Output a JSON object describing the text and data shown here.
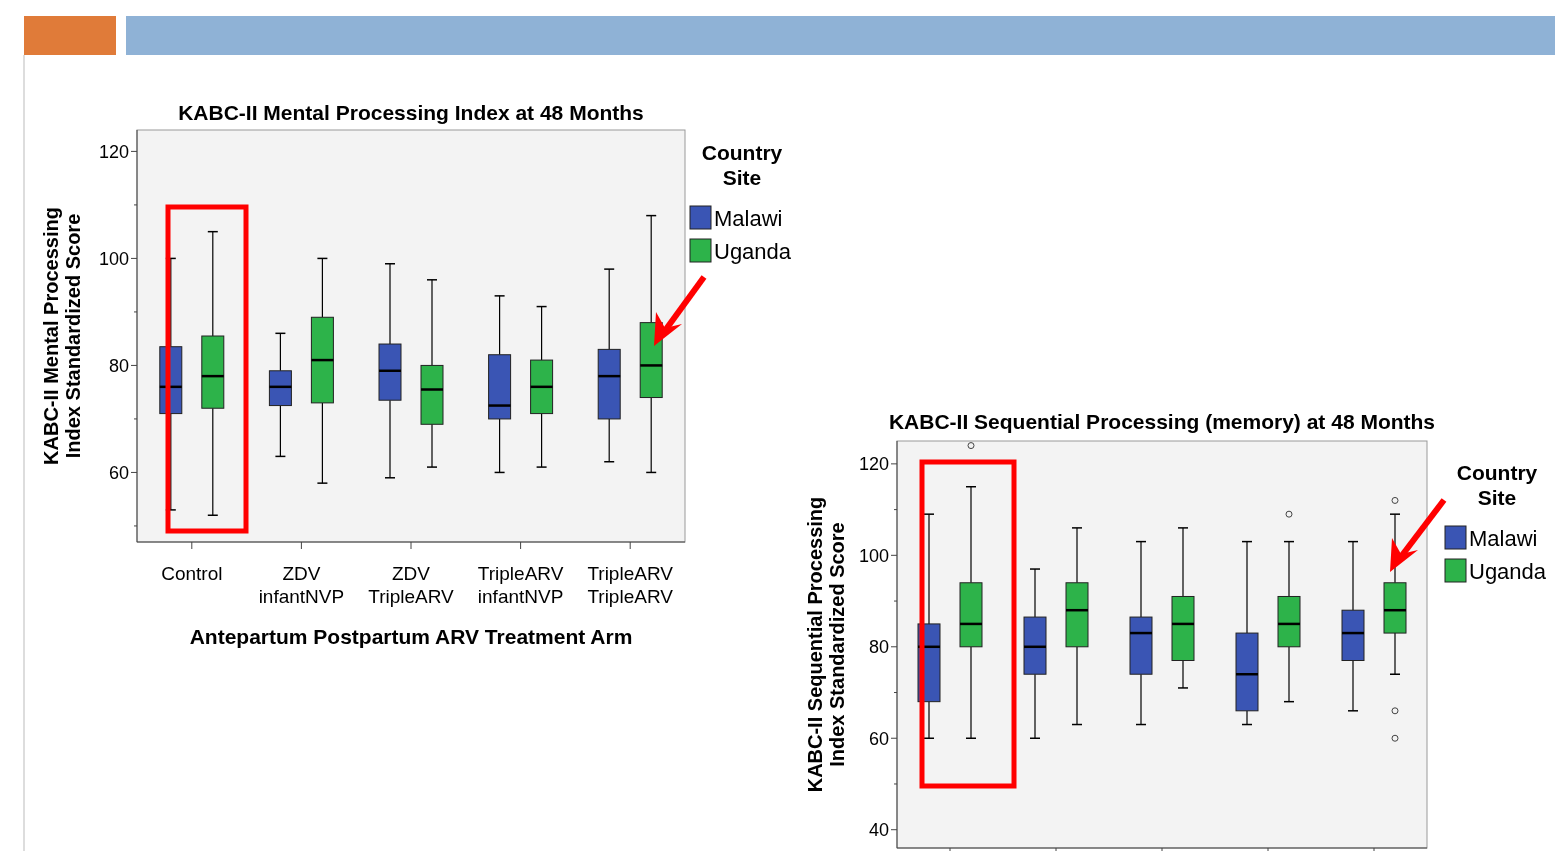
{
  "chart_data": [
    {
      "type": "box",
      "title": "KABC-II Mental Processing Index at 48 Months",
      "xlabel": "Antepartum Postpartum ARV Treatment Arm",
      "ylabel": "KABC-II Mental Processing\nIndex Standardized Score",
      "legend_title": "Country\nSite",
      "legend": "right",
      "categories": [
        "Control",
        "ZDV\ninfantNVP",
        "ZDV\nTripleARV",
        "TripleARV\ninfantNVP",
        "TripleARV\nTripleARV"
      ],
      "ylim": [
        47,
        124
      ],
      "yticks": [
        {
          "value": 50,
          "label": null
        },
        60,
        {
          "value": 70,
          "label": null
        },
        80,
        {
          "value": 90,
          "label": null
        },
        100,
        {
          "value": 110,
          "label": null
        },
        120
      ],
      "series": [
        {
          "name": "Malawi",
          "color": "#3a55b4",
          "boxes": [
            {
              "low": 53,
              "q1": 71,
              "median": 76,
              "q3": 83.5,
              "high": 100
            },
            {
              "low": 63,
              "q1": 72.5,
              "median": 76,
              "q3": 79,
              "high": 86
            },
            {
              "low": 59,
              "q1": 73.5,
              "median": 79,
              "q3": 84,
              "high": 99
            },
            {
              "low": 60,
              "q1": 70,
              "median": 72.5,
              "q3": 82,
              "high": 93
            },
            {
              "low": 62,
              "q1": 70,
              "median": 78,
              "q3": 83,
              "high": 98
            }
          ]
        },
        {
          "name": "Uganda",
          "color": "#2db34a",
          "boxes": [
            {
              "low": 52,
              "q1": 72,
              "median": 78,
              "q3": 85.5,
              "high": 105
            },
            {
              "low": 58,
              "q1": 73,
              "median": 81,
              "q3": 89,
              "high": 100
            },
            {
              "low": 61,
              "q1": 69,
              "median": 75.5,
              "q3": 80,
              "high": 96
            },
            {
              "low": 61,
              "q1": 71,
              "median": 76,
              "q3": 81,
              "high": 91
            },
            {
              "low": 60,
              "q1": 74,
              "median": 80,
              "q3": 88,
              "high": 108
            }
          ]
        }
      ]
    },
    {
      "type": "box",
      "title": "KABC-II Sequential Processing (memory) at 48 Months",
      "ylabel": "KABC-II Sequential Processing\nIndex Standardized Score",
      "legend_title": "Country\nSite",
      "legend": "right",
      "tick_labels": "y",
      "categories": [
        null,
        null,
        null,
        null,
        null
      ],
      "ylim": [
        36,
        125
      ],
      "yticks": [
        40,
        {
          "value": 50,
          "label": null
        },
        60,
        {
          "value": 70,
          "label": null
        },
        80,
        {
          "value": 90,
          "label": null
        },
        100,
        {
          "value": 110,
          "label": null
        },
        120
      ],
      "series": [
        {
          "name": "Malawi",
          "color": "#3a55b4",
          "boxes": [
            {
              "low": 60,
              "q1": 68,
              "median": 80,
              "q3": 85,
              "high": 109
            },
            {
              "low": 60,
              "q1": 74,
              "median": 80,
              "q3": 86.5,
              "high": 97
            },
            {
              "low": 63,
              "q1": 74,
              "median": 83,
              "q3": 86.5,
              "high": 103
            },
            {
              "low": 63,
              "q1": 66,
              "median": 74,
              "q3": 83,
              "high": 103
            },
            {
              "low": 66,
              "q1": 77,
              "median": 83,
              "q3": 88,
              "high": 103
            }
          ]
        },
        {
          "name": "Uganda",
          "color": "#2db34a",
          "boxes": [
            {
              "low": 60,
              "q1": 80,
              "median": 85,
              "q3": 94,
              "high": 115,
              "outliers": [
                124
              ]
            },
            {
              "low": 63,
              "q1": 80,
              "median": 88,
              "q3": 94,
              "high": 106
            },
            {
              "low": 71,
              "q1": 77,
              "median": 85,
              "q3": 91,
              "high": 106
            },
            {
              "low": 68,
              "q1": 80,
              "median": 85,
              "q3": 91,
              "high": 103,
              "outliers": [
                109
              ]
            },
            {
              "low": 74,
              "q1": 83,
              "median": 88,
              "q3": 94,
              "high": 109,
              "outliers": [
                112,
                66,
                60
              ]
            }
          ]
        }
      ]
    }
  ]
}
